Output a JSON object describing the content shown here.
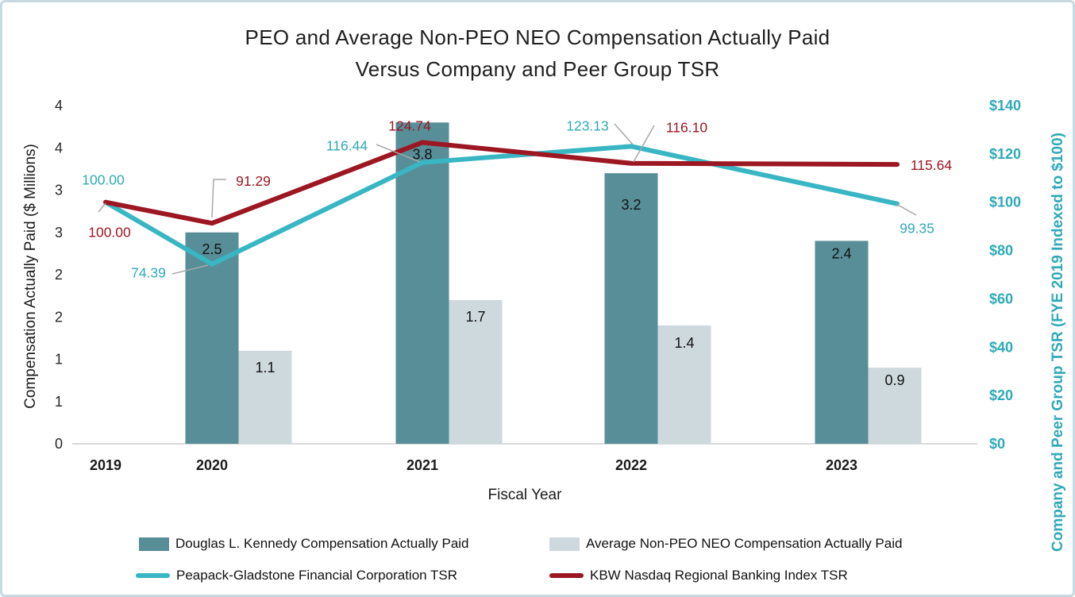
{
  "title": {
    "line1": "PEO and Average Non-PEO NEO Compensation Actually Paid",
    "line2": "Versus Company and Peer Group TSR"
  },
  "axes": {
    "left": {
      "title": "Compensation Actually Paid ($ Millions)",
      "ticks_bottom_to_top": [
        "0",
        "1",
        "1",
        "2",
        "2",
        "3",
        "3",
        "4",
        "4"
      ]
    },
    "right": {
      "title": "Company and Peer Group TSR (FYE 2019 Indexed to $100)",
      "ticks_bottom_to_top": [
        "$0",
        "$20",
        "$40",
        "$60",
        "$80",
        "$100",
        "$120",
        "$140"
      ]
    },
    "x": {
      "title": "Fiscal Year",
      "categories": [
        "2019",
        "2020",
        "2021",
        "2022",
        "2023"
      ]
    }
  },
  "chart_data": {
    "type": "combo-bar-line",
    "categories": [
      "2019",
      "2020",
      "2021",
      "2022",
      "2023"
    ],
    "bar_series": [
      {
        "name": "Douglas L. Kennedy Compensation Actually Paid",
        "axis": "left",
        "color": "#578e97",
        "values": [
          null,
          2.5,
          3.8,
          3.2,
          2.4
        ],
        "labels": [
          null,
          "2.5",
          "3.8",
          "3.2",
          "2.4"
        ]
      },
      {
        "name": "Average Non-PEO NEO Compensation Actually Paid",
        "axis": "left",
        "color": "#cdd9dd",
        "values": [
          null,
          1.1,
          1.7,
          1.4,
          0.9
        ],
        "labels": [
          null,
          "1.1",
          "1.7",
          "1.4",
          "0.9"
        ]
      }
    ],
    "line_series": [
      {
        "name": "Peapack-Gladstone Financial Corporation TSR",
        "axis": "right",
        "color": "#38b6c3",
        "label_color": "#2fa9b8",
        "values": [
          100.0,
          74.39,
          116.44,
          123.13,
          99.35
        ],
        "labels": [
          "100.00",
          "74.39",
          "116.44",
          "123.13",
          "99.35"
        ]
      },
      {
        "name": "KBW Nasdaq Regional Banking Index TSR",
        "axis": "right",
        "color": "#9c1722",
        "label_color": "#9c1722",
        "values": [
          100.0,
          91.29,
          124.74,
          116.1,
          115.64
        ],
        "labels": [
          "100.00",
          "91.29",
          "124.74",
          "116.10",
          "115.64"
        ]
      }
    ],
    "left_axis": {
      "min": 0,
      "max": 4,
      "tick_step": 0.5
    },
    "right_axis": {
      "min": 0,
      "max": 140,
      "tick_step": 20
    },
    "grid": false,
    "legend_position": "bottom",
    "colors": {
      "axis_line": "#d9d9d9",
      "leader_line": "#a8a8a8",
      "right_axis_text": "#2fa9b8"
    }
  }
}
